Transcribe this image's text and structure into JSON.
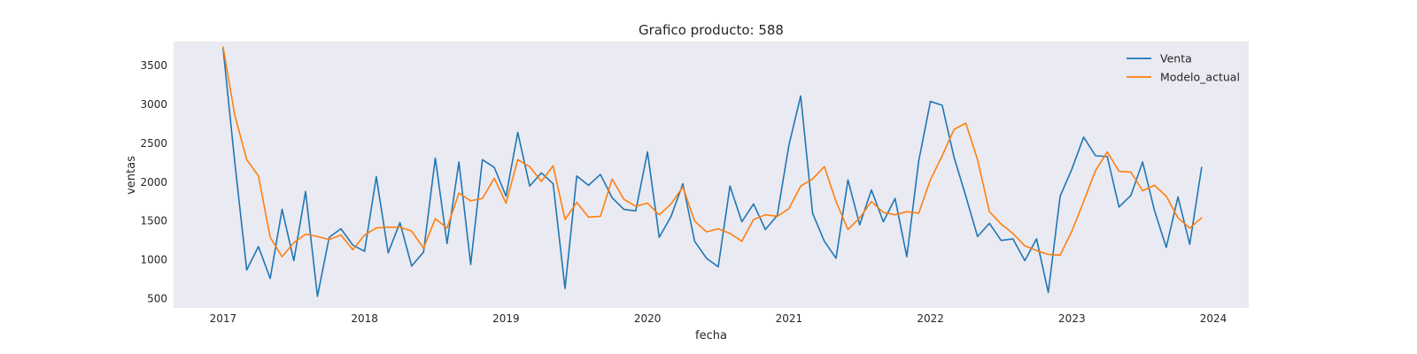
{
  "chart_data": {
    "type": "line",
    "title": "Grafico producto: 588",
    "xlabel": "fecha",
    "ylabel": "ventas",
    "x_ticks": [
      "2017",
      "2018",
      "2019",
      "2020",
      "2021",
      "2022",
      "2023",
      "2024"
    ],
    "y_ticks": [
      500,
      1000,
      1500,
      2000,
      2500,
      3000,
      3500
    ],
    "xlim": [
      2016.65,
      2024.25
    ],
    "ylim": [
      380,
      3810
    ],
    "grid": false,
    "legend": "top-right",
    "colors": {
      "Venta": "#1f77b4",
      "Modelo_actual": "#ff7f0e",
      "plot_background": "#eaeaf2"
    },
    "x": [
      2017.0,
      2017.083,
      2017.167,
      2017.25,
      2017.333,
      2017.417,
      2017.5,
      2017.583,
      2017.667,
      2017.75,
      2017.833,
      2017.917,
      2018.0,
      2018.083,
      2018.167,
      2018.25,
      2018.333,
      2018.417,
      2018.5,
      2018.583,
      2018.667,
      2018.75,
      2018.833,
      2018.917,
      2019.0,
      2019.083,
      2019.167,
      2019.25,
      2019.333,
      2019.417,
      2019.5,
      2019.583,
      2019.667,
      2019.75,
      2019.833,
      2019.917,
      2020.0,
      2020.083,
      2020.167,
      2020.25,
      2020.333,
      2020.417,
      2020.5,
      2020.583,
      2020.667,
      2020.75,
      2020.833,
      2020.917,
      2021.0,
      2021.083,
      2021.167,
      2021.25,
      2021.333,
      2021.417,
      2021.5,
      2021.583,
      2021.667,
      2021.75,
      2021.833,
      2021.917,
      2022.0,
      2022.083,
      2022.167,
      2022.25,
      2022.333,
      2022.417,
      2022.5,
      2022.583,
      2022.667,
      2022.75,
      2022.833,
      2022.917,
      2023.0,
      2023.083,
      2023.167,
      2023.25,
      2023.333,
      2023.417,
      2023.5,
      2023.583,
      2023.667,
      2023.75,
      2023.833,
      2023.917
    ],
    "series": [
      {
        "name": "Venta",
        "values": [
          3720,
          2250,
          870,
          1170,
          760,
          1650,
          990,
          1880,
          530,
          1290,
          1400,
          1190,
          1110,
          2070,
          1090,
          1480,
          920,
          1100,
          2310,
          1210,
          2260,
          940,
          2290,
          2190,
          1820,
          2640,
          1950,
          2120,
          1980,
          630,
          2080,
          1960,
          2100,
          1800,
          1650,
          1630,
          2390,
          1290,
          1560,
          1980,
          1240,
          1020,
          910,
          1950,
          1490,
          1720,
          1390,
          1570,
          2480,
          3110,
          1600,
          1240,
          1020,
          2030,
          1450,
          1900,
          1490,
          1790,
          1040,
          2270,
          3040,
          2990,
          2320,
          1820,
          1300,
          1470,
          1250,
          1270,
          990,
          1270,
          580,
          1820,
          2170,
          2580,
          2340,
          2330,
          1680,
          1830,
          2260,
          1640,
          1160,
          1810,
          1200,
          2190
        ]
      },
      {
        "name": "Modelo_actual",
        "values": [
          3740,
          2860,
          2290,
          2080,
          1290,
          1040,
          1220,
          1330,
          1300,
          1260,
          1320,
          1130,
          1320,
          1410,
          1420,
          1420,
          1370,
          1150,
          1530,
          1410,
          1860,
          1760,
          1790,
          2050,
          1730,
          2290,
          2200,
          2010,
          2210,
          1520,
          1740,
          1550,
          1560,
          2040,
          1780,
          1690,
          1730,
          1580,
          1720,
          1940,
          1500,
          1360,
          1400,
          1340,
          1240,
          1520,
          1580,
          1560,
          1660,
          1950,
          2040,
          2200,
          1750,
          1390,
          1540,
          1750,
          1610,
          1580,
          1620,
          1600,
          2030,
          2340,
          2680,
          2760,
          2290,
          1620,
          1460,
          1340,
          1180,
          1120,
          1070,
          1060,
          1370,
          1750,
          2150,
          2390,
          2140,
          2130,
          1890,
          1960,
          1820,
          1540,
          1410,
          1540
        ]
      }
    ]
  }
}
